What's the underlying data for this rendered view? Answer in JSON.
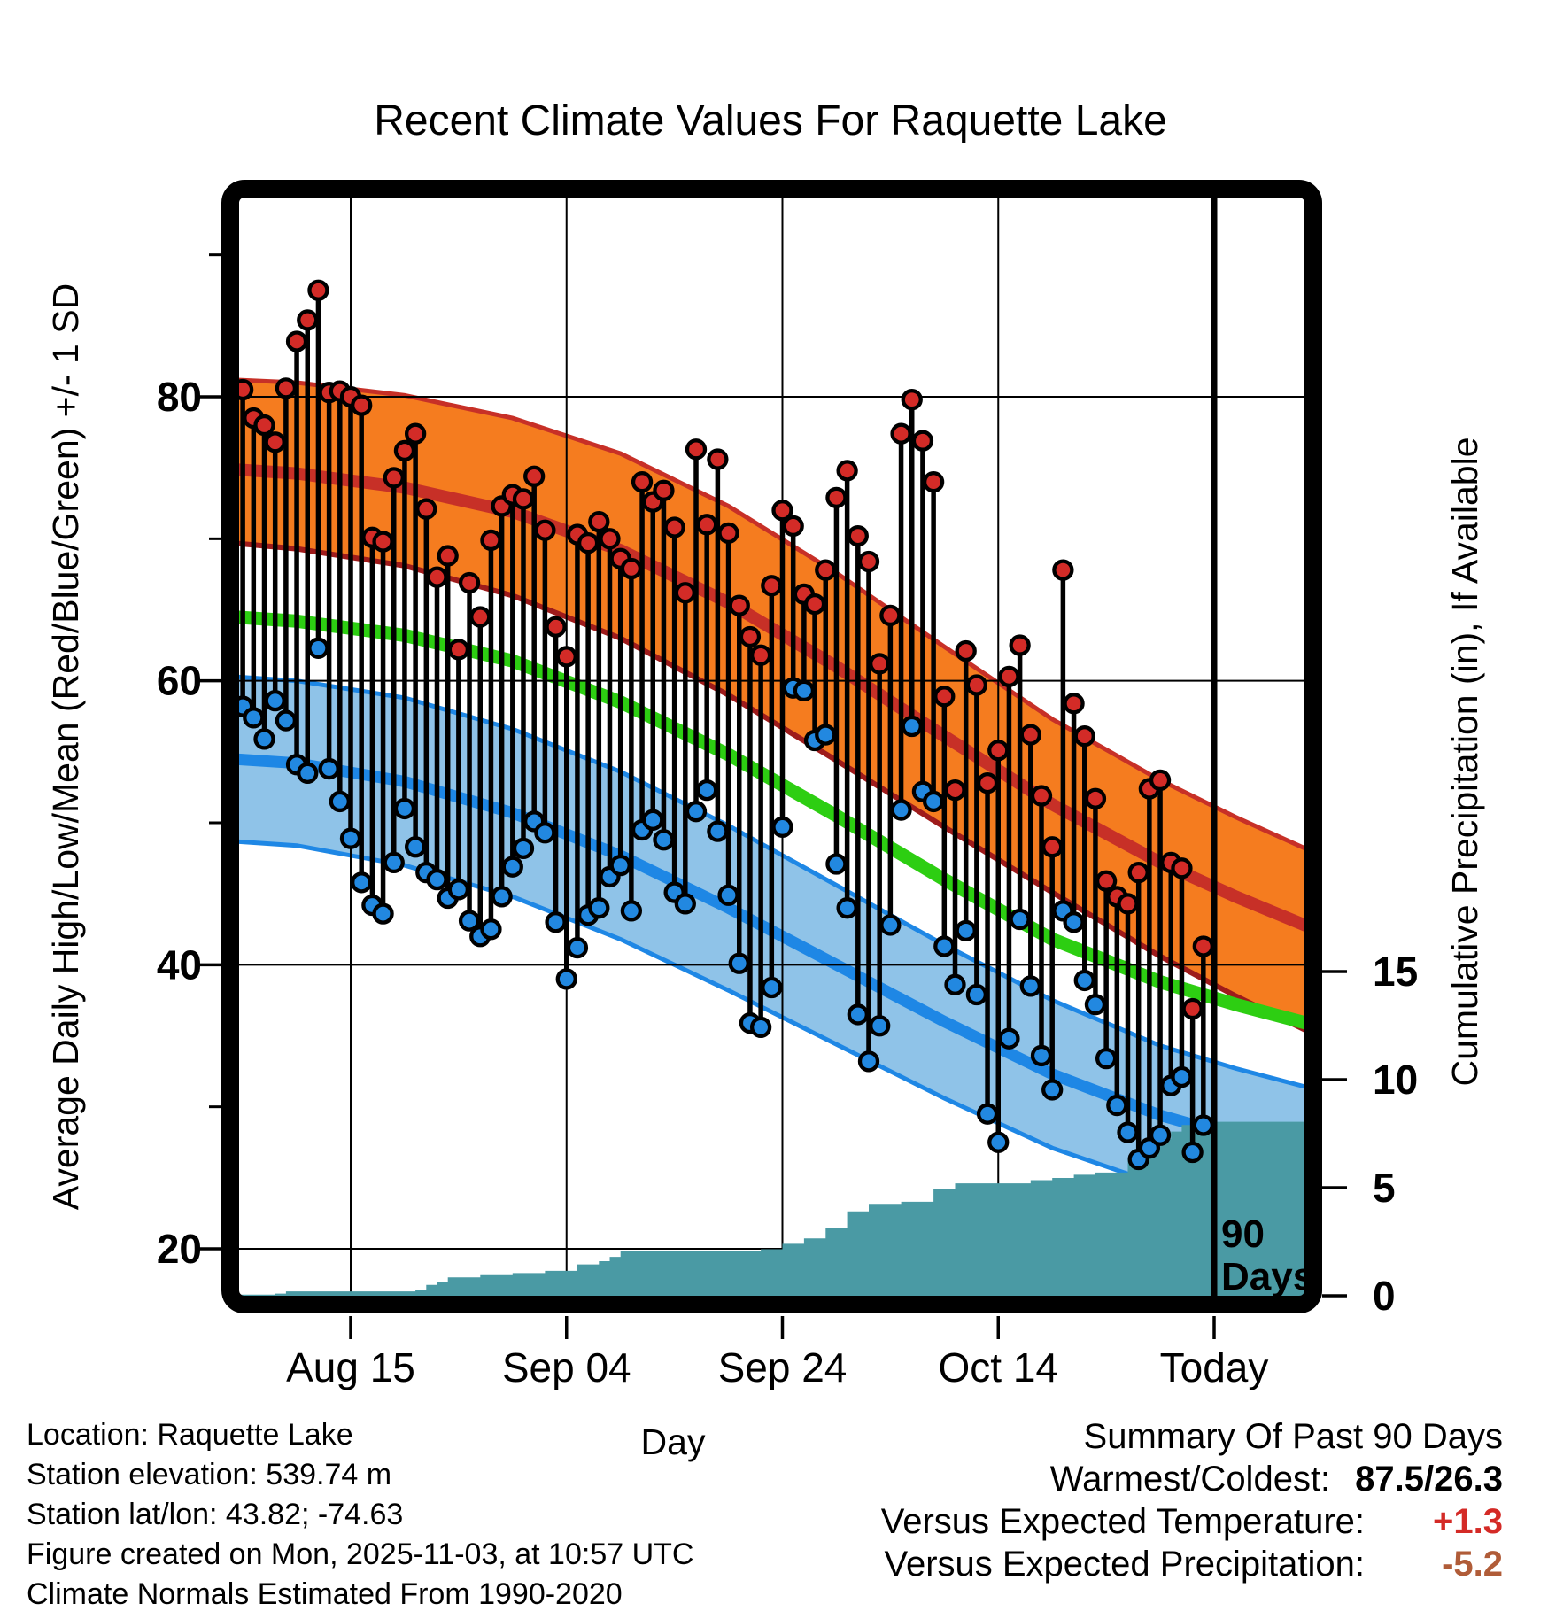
{
  "title": "Recent Climate Values For Raquette Lake",
  "axes": {
    "left_label": "Average Daily High/Low/Mean (Red/Blue/Green) +/- 1 SD",
    "right_label": "Cumulative Precipitation (in), If Available",
    "x_label": "Day"
  },
  "annotations": {
    "ninety_line1": "90",
    "ninety_line2": "Days"
  },
  "footer_left": {
    "location": "Location: Raquette Lake",
    "elevation": "Station elevation: 539.74 m",
    "latlon": "Station lat/lon: 43.82; -74.63",
    "created": "Figure created on Mon, 2025-11-03, at 10:57 UTC",
    "normals": "Climate Normals Estimated From 1990-2020"
  },
  "summary": {
    "title": "Summary Of Past 90 Days",
    "warmest_label": "Warmest/Coldest:",
    "warmest_value": "87.5/26.3",
    "temp_label": "Versus Expected Temperature:",
    "temp_value": "+1.3",
    "precip_label": "Versus Expected Precipitation:",
    "precip_value": "-5.2"
  },
  "colors": {
    "high_band_fill": "#F57C1F",
    "high_edge_upper": "#C73027",
    "high_edge_lower": "#9E1B1B",
    "high_mean_line": "#C73027",
    "mean_line_green": "#2DCE12",
    "low_band_fill": "#8FC3E8",
    "low_edge": "#1E87E5",
    "low_mean_line": "#1E87E5",
    "high_marker": "#D32B27",
    "low_marker": "#2288E0",
    "precip_fill": "#4A9AA4",
    "grid_and_frame": "#000000",
    "temp_anomaly_text": "#D42A26",
    "precip_anomaly_text": "#B05C38"
  },
  "chart_data": {
    "type": "line",
    "title": "Recent Climate Values For Raquette Lake",
    "xlabel": "Day",
    "ylabel_left": "Average Daily High/Low/Mean (Red/Blue/Green) +/- 1 SD",
    "ylabel_right": "Cumulative Precipitation (in), If Available",
    "x_tick_days": [
      10,
      30,
      50,
      70,
      90
    ],
    "x_tick_labels": [
      "Aug 15",
      "Sep 04",
      "Sep 24",
      "Oct 14",
      "Today"
    ],
    "today_day": 90,
    "temp_ticks": [
      20,
      40,
      60,
      80
    ],
    "temp_minor_ticks": [
      30,
      50,
      70,
      90
    ],
    "precip_ticks": [
      0,
      5,
      10,
      15
    ],
    "temp_range": [
      16.7,
      94.2
    ],
    "precip_range": [
      0,
      18
    ],
    "grid": true,
    "start_date": "Aug 05",
    "end_date": "Nov 02",
    "normals": {
      "high_plus_sd": [
        [
          -1,
          81.2
        ],
        [
          5,
          81.0
        ],
        [
          15,
          80.1
        ],
        [
          25,
          78.5
        ],
        [
          35,
          76.0
        ],
        [
          45,
          72.3
        ],
        [
          55,
          67.6
        ],
        [
          65,
          62.4
        ],
        [
          75,
          57.3
        ],
        [
          85,
          53.0
        ],
        [
          92,
          50.4
        ],
        [
          99,
          48.0
        ]
      ],
      "high_mean": [
        [
          -1,
          74.9
        ],
        [
          5,
          74.6
        ],
        [
          15,
          73.6
        ],
        [
          25,
          71.9
        ],
        [
          35,
          69.2
        ],
        [
          45,
          65.5
        ],
        [
          55,
          61.0
        ],
        [
          65,
          56.1
        ],
        [
          75,
          51.3
        ],
        [
          85,
          47.2
        ],
        [
          92,
          44.8
        ],
        [
          99,
          42.6
        ]
      ],
      "high_minus_sd": [
        [
          -1,
          69.7
        ],
        [
          5,
          69.3
        ],
        [
          15,
          68.1
        ],
        [
          25,
          66.0
        ],
        [
          35,
          63.0
        ],
        [
          45,
          59.0
        ],
        [
          55,
          54.4
        ],
        [
          65,
          49.7
        ],
        [
          75,
          45.1
        ],
        [
          85,
          40.6
        ],
        [
          92,
          37.8
        ],
        [
          99,
          35.2
        ]
      ],
      "mean": [
        [
          -1,
          64.5
        ],
        [
          5,
          64.2
        ],
        [
          15,
          63.2
        ],
        [
          25,
          61.4
        ],
        [
          35,
          58.5
        ],
        [
          45,
          54.8
        ],
        [
          55,
          50.5
        ],
        [
          65,
          46.0
        ],
        [
          75,
          41.8
        ],
        [
          85,
          38.8
        ],
        [
          92,
          37.2
        ],
        [
          99,
          35.8
        ]
      ],
      "low_plus_sd": [
        [
          -1,
          60.3
        ],
        [
          5,
          60.0
        ],
        [
          15,
          58.8
        ],
        [
          25,
          56.6
        ],
        [
          35,
          53.6
        ],
        [
          45,
          49.8
        ],
        [
          55,
          45.6
        ],
        [
          65,
          41.4
        ],
        [
          75,
          37.5
        ],
        [
          85,
          34.3
        ],
        [
          92,
          32.7
        ],
        [
          99,
          31.3
        ]
      ],
      "low_mean": [
        [
          -1,
          54.5
        ],
        [
          5,
          54.2
        ],
        [
          15,
          52.9
        ],
        [
          25,
          50.7
        ],
        [
          35,
          47.7
        ],
        [
          45,
          44.0
        ],
        [
          55,
          40.0
        ],
        [
          65,
          36.0
        ],
        [
          75,
          32.3
        ],
        [
          85,
          29.4
        ],
        [
          92,
          27.9
        ],
        [
          99,
          26.7
        ]
      ],
      "low_minus_sd": [
        [
          -1,
          48.7
        ],
        [
          5,
          48.4
        ],
        [
          15,
          47.0
        ],
        [
          25,
          44.8
        ],
        [
          35,
          41.8
        ],
        [
          45,
          38.2
        ],
        [
          55,
          34.4
        ],
        [
          65,
          30.6
        ],
        [
          75,
          27.1
        ],
        [
          85,
          24.5
        ],
        [
          92,
          23.2
        ],
        [
          99,
          22.1
        ]
      ]
    },
    "daily": {
      "first_day_index": 0,
      "high": [
        80.5,
        78.5,
        78.0,
        76.8,
        80.6,
        83.9,
        85.4,
        87.5,
        80.3,
        80.4,
        80.0,
        79.4,
        70.1,
        69.8,
        74.3,
        76.2,
        77.4,
        72.1,
        67.3,
        68.8,
        62.2,
        66.9,
        64.5,
        69.9,
        72.3,
        73.1,
        72.8,
        74.4,
        70.6,
        63.8,
        61.7,
        70.3,
        69.7,
        71.2,
        70.0,
        68.6,
        67.9,
        74.0,
        72.6,
        73.4,
        70.8,
        66.2,
        76.3,
        71.0,
        75.6,
        70.4,
        65.3,
        63.1,
        61.8,
        66.7,
        72.0,
        70.9,
        66.1,
        65.4,
        67.8,
        72.9,
        74.8,
        70.2,
        68.4,
        61.2,
        64.6,
        77.4,
        79.8,
        76.9,
        74.0,
        58.9,
        52.3,
        62.1,
        59.7,
        52.8,
        55.1,
        60.3,
        62.5,
        56.2,
        51.9,
        48.3,
        67.8,
        58.4,
        56.1,
        51.7,
        45.9,
        44.8,
        44.3,
        46.5,
        52.4,
        53.0,
        47.2,
        46.8,
        36.9,
        41.3
      ],
      "low": [
        58.2,
        57.4,
        55.9,
        58.6,
        57.2,
        54.1,
        53.5,
        62.3,
        53.8,
        51.5,
        48.9,
        45.8,
        44.2,
        43.6,
        47.2,
        51.0,
        48.3,
        46.5,
        46.0,
        44.7,
        45.3,
        43.1,
        42.0,
        42.5,
        44.8,
        46.9,
        48.2,
        50.1,
        49.3,
        43.0,
        39.0,
        41.2,
        43.5,
        44.0,
        46.2,
        47.0,
        43.8,
        49.5,
        50.2,
        48.8,
        45.1,
        44.3,
        50.8,
        52.3,
        49.4,
        44.9,
        40.1,
        35.9,
        35.6,
        38.4,
        49.7,
        59.5,
        59.3,
        55.8,
        56.2,
        47.1,
        44.0,
        36.5,
        33.2,
        35.7,
        42.8,
        50.9,
        56.8,
        52.2,
        51.5,
        41.3,
        38.6,
        42.4,
        37.9,
        29.5,
        27.5,
        34.8,
        43.2,
        38.5,
        33.6,
        31.2,
        43.8,
        43.0,
        38.9,
        37.2,
        33.4,
        30.1,
        28.2,
        26.3,
        27.1,
        28.0,
        31.5,
        32.1,
        26.8,
        28.7
      ]
    },
    "precip_cumulative_steps": [
      [
        -1,
        0.05
      ],
      [
        3,
        0.1
      ],
      [
        4,
        0.2
      ],
      [
        16,
        0.25
      ],
      [
        17,
        0.5
      ],
      [
        18,
        0.65
      ],
      [
        19,
        0.85
      ],
      [
        22,
        0.95
      ],
      [
        25,
        1.05
      ],
      [
        28,
        1.15
      ],
      [
        31,
        1.45
      ],
      [
        33,
        1.6
      ],
      [
        34,
        1.8
      ],
      [
        35,
        2.05
      ],
      [
        48,
        2.15
      ],
      [
        50,
        2.4
      ],
      [
        52,
        2.65
      ],
      [
        54,
        3.15
      ],
      [
        56,
        3.9
      ],
      [
        58,
        4.25
      ],
      [
        61,
        4.35
      ],
      [
        64,
        4.95
      ],
      [
        66,
        5.2
      ],
      [
        73,
        5.35
      ],
      [
        75,
        5.45
      ],
      [
        77,
        5.6
      ],
      [
        79,
        5.7
      ],
      [
        82,
        6.35
      ],
      [
        84,
        7.25
      ],
      [
        86,
        7.6
      ],
      [
        87,
        7.9
      ],
      [
        88,
        8.05
      ],
      [
        99,
        8.05
      ]
    ]
  }
}
